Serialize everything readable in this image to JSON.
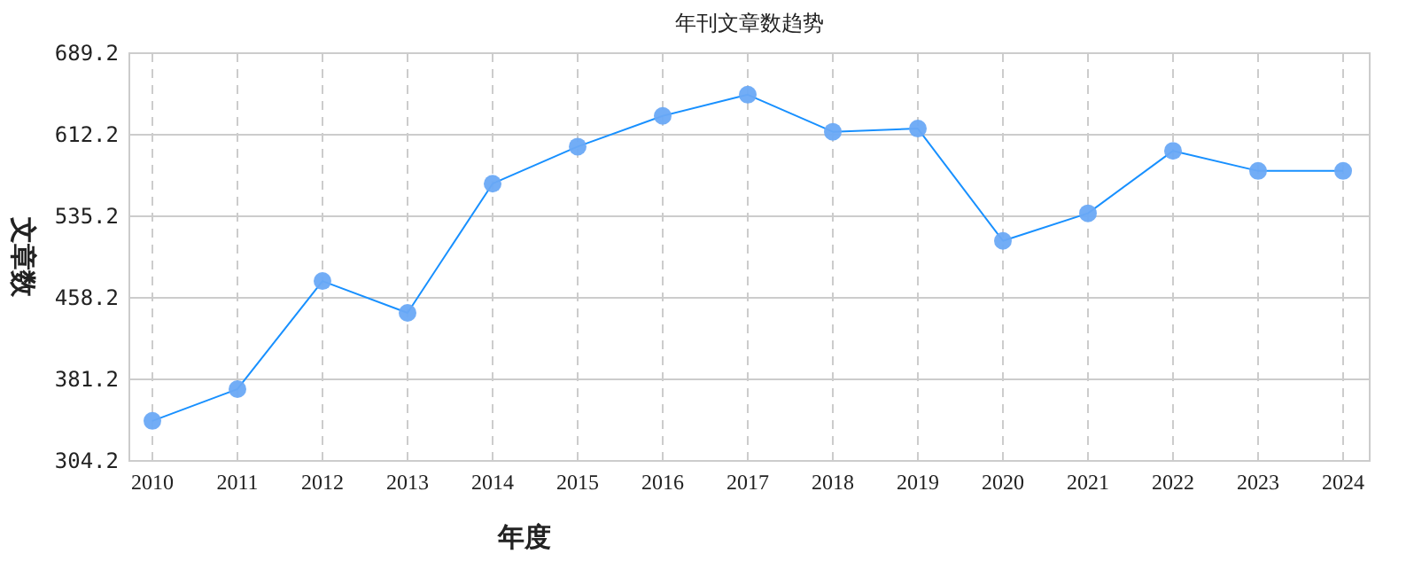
{
  "chart_data": {
    "type": "line",
    "title": "年刊文章数趋势",
    "xlabel": "年度",
    "ylabel": "文章数",
    "categories": [
      "2010",
      "2011",
      "2012",
      "2013",
      "2014",
      "2015",
      "2016",
      "2017",
      "2018",
      "2019",
      "2020",
      "2021",
      "2022",
      "2023",
      "2024"
    ],
    "series": [
      {
        "color": "#1890ff",
        "values": [
          342,
          372,
          474,
          444,
          566,
          601,
          630,
          650,
          615,
          618,
          512,
          538,
          597,
          578,
          578
        ]
      }
    ],
    "ylim": [
      304.2,
      689.2
    ],
    "yticks": [
      304.2,
      381.2,
      458.2,
      535.2,
      612.2,
      689.2
    ],
    "grid": true,
    "marker": "circle",
    "line_style": "solid"
  }
}
